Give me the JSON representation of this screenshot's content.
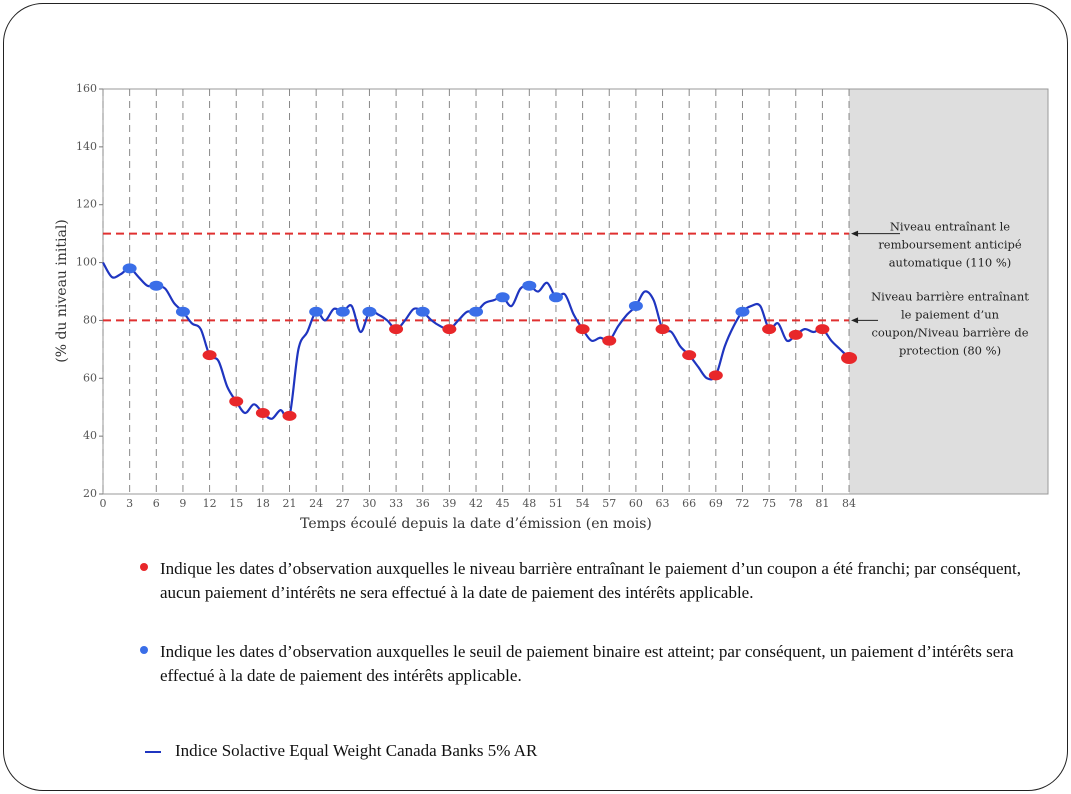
{
  "chart_data": {
    "type": "line",
    "x_label": "Temps écoulé depuis la date d’émission (en mois)",
    "y_label": "(% du niveau initial)",
    "xlim": [
      0,
      106.4
    ],
    "ylim": [
      20,
      160
    ],
    "xticks": [
      0,
      3,
      6,
      9,
      12,
      15,
      18,
      21,
      24,
      27,
      30,
      33,
      36,
      39,
      42,
      45,
      48,
      51,
      54,
      57,
      60,
      63,
      66,
      69,
      72,
      75,
      78,
      81,
      84
    ],
    "yticks": [
      20,
      40,
      60,
      80,
      100,
      120,
      140,
      160
    ],
    "shaded_from": 84,
    "grid": true,
    "reference_lines": [
      {
        "value": 110,
        "color": "#e03030",
        "annotation": [
          "Niveau entraînant le",
          "remboursement anticipé",
          "automatique (110 %)"
        ]
      },
      {
        "value": 80,
        "color": "#e03030",
        "annotation": [
          "Niveau barrière entraînant",
          "le paiement d’un",
          "coupon/Niveau barrière de",
          "protection (80 %)"
        ]
      }
    ],
    "series": [
      {
        "name": "Indice Solactive Equal Weight Canada Banks 5% AR",
        "color": "#1f35c0",
        "kind": "line",
        "x": [
          0,
          1,
          2,
          3,
          4,
          5,
          6,
          7,
          8,
          9,
          10,
          11,
          12,
          13,
          14,
          15,
          16,
          17,
          18,
          19,
          20,
          21,
          22,
          23,
          24,
          25,
          26,
          27,
          28,
          29,
          30,
          31,
          32,
          33,
          34,
          35,
          36,
          37,
          38,
          39,
          40,
          41,
          42,
          43,
          44,
          45,
          46,
          47,
          48,
          49,
          50,
          51,
          52,
          53,
          54,
          55,
          56,
          57,
          58,
          59,
          60,
          61,
          62,
          63,
          64,
          65,
          66,
          67,
          68,
          69,
          70,
          71,
          72,
          73,
          74,
          75,
          76,
          77,
          78,
          79,
          80,
          81,
          82,
          83,
          84
        ],
        "values": [
          100,
          95,
          96,
          98,
          95,
          92,
          92,
          91,
          86,
          83,
          79,
          77,
          68,
          66,
          57,
          52,
          48,
          51,
          48,
          46,
          49,
          47,
          70,
          76,
          83,
          80,
          84,
          83,
          85,
          76,
          83,
          82,
          80,
          77,
          80,
          84,
          83,
          80,
          78,
          77,
          80,
          83,
          83,
          86,
          87,
          88,
          85,
          91,
          92,
          90,
          93,
          88,
          89,
          82,
          77,
          73,
          74,
          73,
          78,
          82,
          85,
          90,
          87,
          77,
          76,
          71,
          68,
          64,
          60,
          61,
          71,
          78,
          83,
          85,
          85,
          77,
          79,
          73,
          75,
          77,
          76,
          77,
          73,
          70,
          67
        ]
      },
      {
        "name": "Indique les dates d’observation auxquelles le niveau barrière entraînant le paiement d’un coupon a été franchi; par conséquent, aucun paiement d’intérêts ne sera effectué à la date de paiement des intérêts applicable.",
        "color": "#e8272a",
        "kind": "marker",
        "x": [
          12,
          15,
          18,
          21,
          33,
          39,
          54,
          57,
          63,
          66,
          69,
          75,
          78,
          81,
          84
        ],
        "values": [
          68,
          52,
          48,
          47,
          77,
          77,
          77,
          73,
          77,
          68,
          61,
          77,
          75,
          77,
          67
        ]
      },
      {
        "name": "Indique les dates d’observation auxquelles le seuil de paiement binaire est atteint; par conséquent, un paiement d’intérêts sera effectué à la date de paiement des intérêts applicable.",
        "color": "#3a6ee8",
        "kind": "marker",
        "x": [
          3,
          6,
          9,
          24,
          27,
          30,
          36,
          42,
          45,
          48,
          51,
          60,
          72
        ],
        "values": [
          98,
          92,
          83,
          83,
          83,
          83,
          83,
          83,
          88,
          92,
          88,
          85,
          83
        ]
      }
    ]
  }
}
